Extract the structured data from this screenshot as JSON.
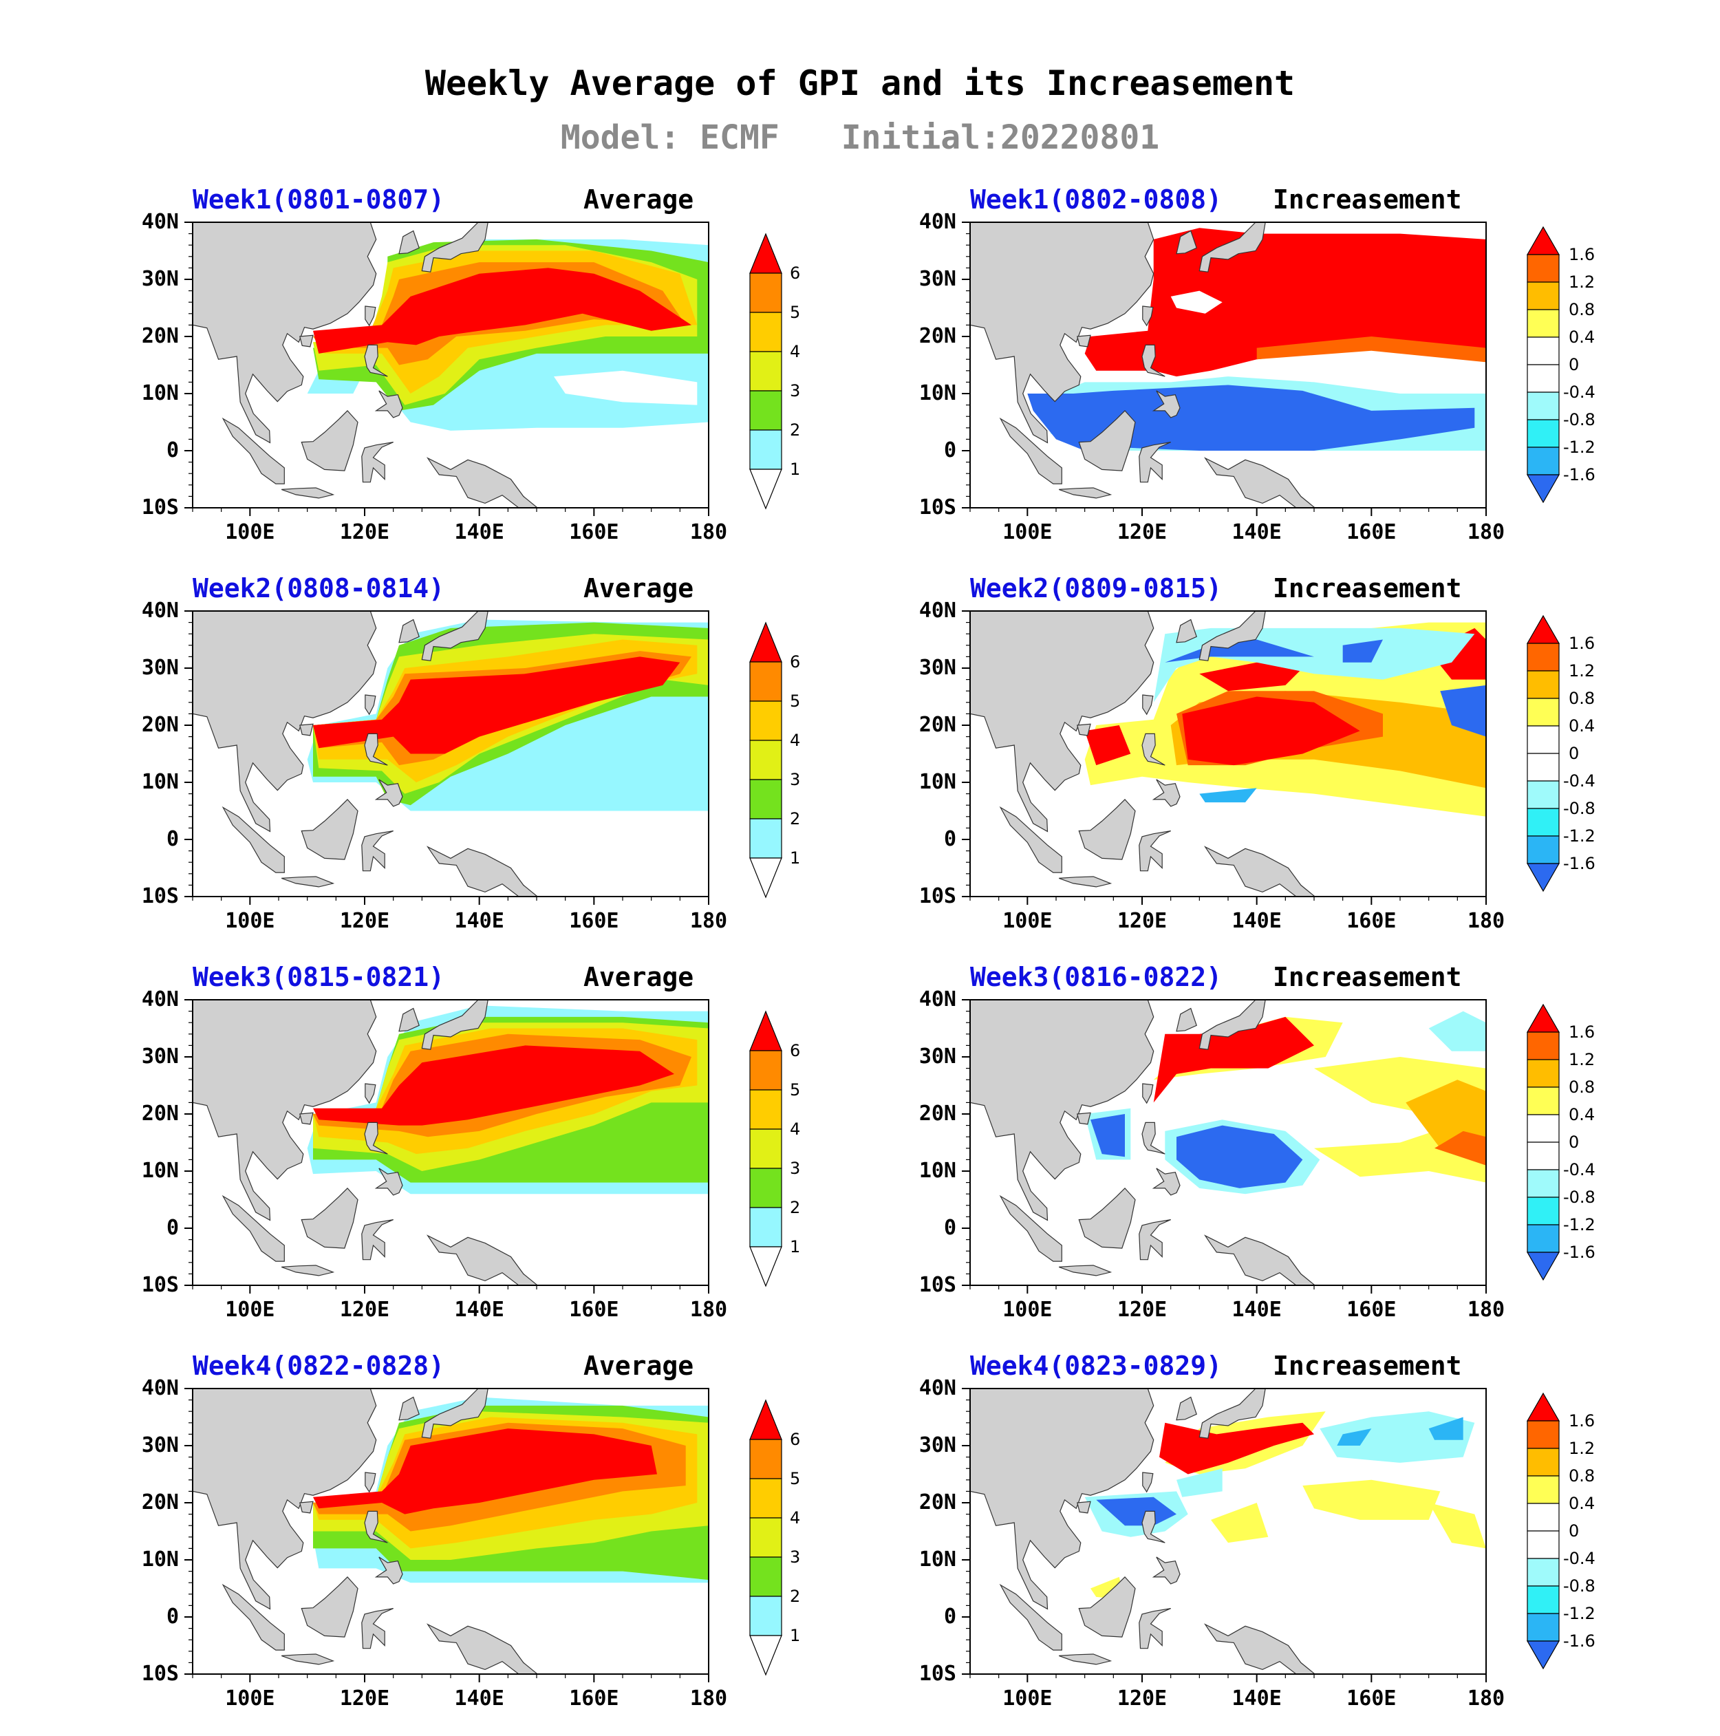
{
  "title": "Weekly Average of GPI and its Increasement",
  "subtitle": {
    "model": "Model: ECMF",
    "initial": "Initial:20220801"
  },
  "axes": {
    "lat_ticks": [
      "40N",
      "30N",
      "20N",
      "10N",
      "0",
      "10S"
    ],
    "lon_ticks": [
      "100E",
      "120E",
      "140E",
      "160E",
      "180"
    ],
    "lat_range": [
      -10,
      40
    ],
    "lon_range": [
      90,
      180
    ]
  },
  "average_colorbar": {
    "levels": [
      "1",
      "2",
      "3",
      "4",
      "5",
      "6"
    ],
    "colors": [
      "#ffffff",
      "#96f7ff",
      "#74e21e",
      "#e1f016",
      "#ffcd00",
      "#ff8a00",
      "#ff0000"
    ]
  },
  "increasement_colorbar": {
    "levels": [
      "1.6",
      "1.2",
      "0.8",
      "0.4",
      "0",
      "-0.4",
      "-0.8",
      "-1.2",
      "-1.6"
    ],
    "colors": [
      "#ff0000",
      "#ff6600",
      "#ffbd00",
      "#ffff55",
      "#ffffff",
      "#ffffff",
      "#9ffafb",
      "#30f0f6",
      "#2bb5f5",
      "#2c6af0"
    ]
  },
  "panels": [
    {
      "id": "w1a",
      "week": "Week1(0801-0807)",
      "kind": "Average"
    },
    {
      "id": "w1i",
      "week": "Week1(0802-0808)",
      "kind": "Increasement"
    },
    {
      "id": "w2a",
      "week": "Week2(0808-0814)",
      "kind": "Average"
    },
    {
      "id": "w2i",
      "week": "Week2(0809-0815)",
      "kind": "Increasement"
    },
    {
      "id": "w3a",
      "week": "Week3(0815-0821)",
      "kind": "Average"
    },
    {
      "id": "w3i",
      "week": "Week3(0816-0822)",
      "kind": "Increasement"
    },
    {
      "id": "w4a",
      "week": "Week4(0822-0828)",
      "kind": "Average"
    },
    {
      "id": "w4i",
      "week": "Week4(0823-0829)",
      "kind": "Increasement"
    }
  ]
}
